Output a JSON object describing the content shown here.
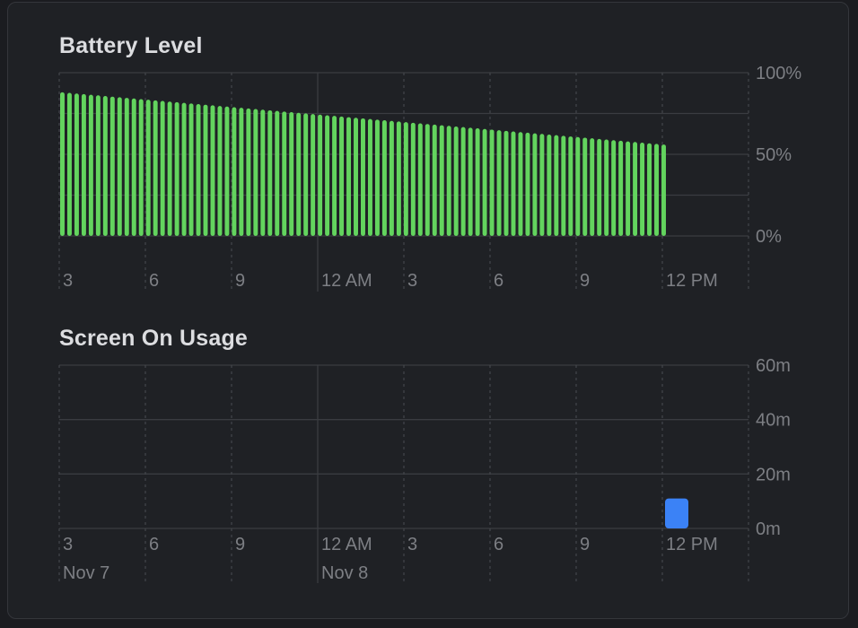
{
  "chart_data": [
    {
      "type": "bar",
      "title": "Battery Level",
      "y_unit": "%",
      "ylim": [
        0,
        100
      ],
      "y_ticks": [
        {
          "value": 100,
          "label": "100%"
        },
        {
          "value": 50,
          "label": "50%"
        },
        {
          "value": 0,
          "label": "0%"
        }
      ],
      "x_tick_labels": [
        "3",
        "6",
        "9",
        "12 AM",
        "3",
        "6",
        "9",
        "12 PM"
      ],
      "bar_color": "#63d45e",
      "start_value": 88,
      "end_value": 56,
      "bar_count": 85,
      "grid": true
    },
    {
      "type": "bar",
      "title": "Screen On Usage",
      "y_unit": "minutes",
      "ylim": [
        0,
        60
      ],
      "y_ticks": [
        {
          "value": 60,
          "label": "60m"
        },
        {
          "value": 40,
          "label": "40m"
        },
        {
          "value": 20,
          "label": "20m"
        },
        {
          "value": 0,
          "label": "0m"
        }
      ],
      "x_tick_labels": [
        "3",
        "6",
        "9",
        "12 AM",
        "3",
        "6",
        "9",
        "12 PM"
      ],
      "date_labels": [
        "Nov 7",
        "Nov 8"
      ],
      "bar_color": "#3b82f6",
      "bars": [
        {
          "slot": "12 PM",
          "minutes": 11
        }
      ],
      "grid": true
    }
  ]
}
